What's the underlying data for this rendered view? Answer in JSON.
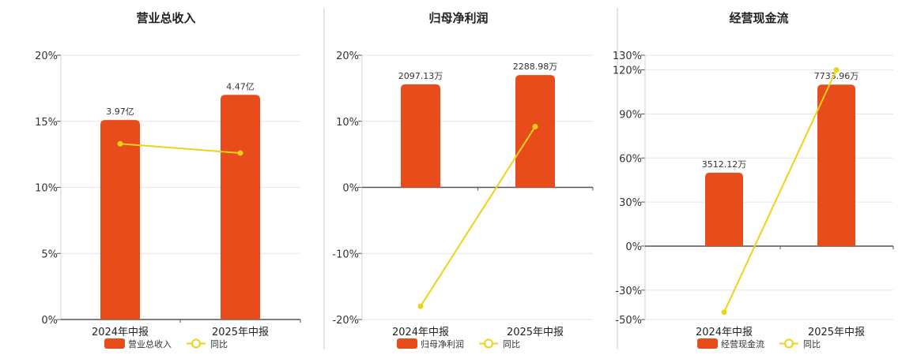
{
  "colors": {
    "bar": "#e84c1b",
    "line": "#f0d11a",
    "grid": "#e3e6ec",
    "axis": "#555555",
    "divider": "#cccccc"
  },
  "chart_data": [
    {
      "type": "bar",
      "title": "营业总收入",
      "categories": [
        "2024年中报",
        "2025年中报"
      ],
      "bar_labels": [
        "3.97亿",
        "4.47亿"
      ],
      "ylim": [
        0,
        20
      ],
      "yticks": [
        0,
        5,
        10,
        15,
        20
      ],
      "ytick_labels": [
        "0%",
        "5%",
        "10%",
        "15%",
        "20%"
      ],
      "series": [
        {
          "name": "营业总收入",
          "type": "bar",
          "values": [
            15.1,
            17.0
          ]
        },
        {
          "name": "同比",
          "type": "line",
          "values": [
            13.3,
            12.6
          ]
        }
      ]
    },
    {
      "type": "bar",
      "title": "归母净利润",
      "categories": [
        "2024年中报",
        "2025年中报"
      ],
      "bar_labels": [
        "2097.13万",
        "2288.98万"
      ],
      "ylim": [
        -20,
        20
      ],
      "yticks": [
        -20,
        -10,
        0,
        10,
        20
      ],
      "ytick_labels": [
        "-20%",
        "-10%",
        "0%",
        "10%",
        "20%"
      ],
      "series": [
        {
          "name": "归母净利润",
          "type": "bar",
          "values": [
            15.6,
            17.0
          ]
        },
        {
          "name": "同比",
          "type": "line",
          "values": [
            -18.0,
            9.2
          ]
        }
      ]
    },
    {
      "type": "bar",
      "title": "经营现金流",
      "categories": [
        "2024年中报",
        "2025年中报"
      ],
      "bar_labels": [
        "3512.12万",
        "7733.96万"
      ],
      "ylim": [
        -50,
        130
      ],
      "yticks": [
        -50,
        -30,
        0,
        30,
        60,
        90,
        120,
        130
      ],
      "ytick_labels": [
        "-50%",
        "-30%",
        "0%",
        "30%",
        "60%",
        "90%",
        "120%",
        "130%"
      ],
      "series": [
        {
          "name": "经营现金流",
          "type": "bar",
          "values": [
            50.0,
            110.0
          ]
        },
        {
          "name": "同比",
          "type": "line",
          "values": [
            -45.0,
            120.0
          ]
        }
      ]
    }
  ]
}
